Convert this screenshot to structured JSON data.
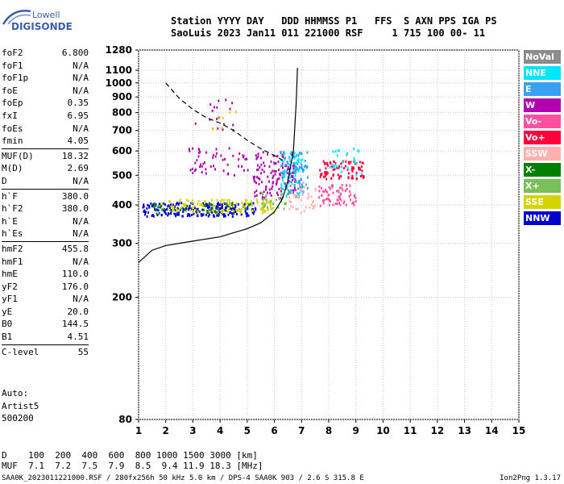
{
  "logo": {
    "line1": "Lowell",
    "line2": "DIGISONDE"
  },
  "header": {
    "line1": "Station YYYY DAY   DDD HHMMSS P1   FFS  S AXN PPS IGA PS",
    "line2": "SaoLuis 2023 Jan11 011 221000 RSF     1 715 100 00- 11"
  },
  "params": {
    "group1": [
      {
        "label": "foF2",
        "value": "6.800"
      },
      {
        "label": "foF1",
        "value": "N/A"
      },
      {
        "label": "foF1p",
        "value": "N/A"
      },
      {
        "label": "foE",
        "value": "N/A"
      },
      {
        "label": "foEp",
        "value": "0.35"
      },
      {
        "label": "fxI",
        "value": "6.95"
      },
      {
        "label": "foEs",
        "value": "N/A"
      },
      {
        "label": "fmin",
        "value": "4.05"
      }
    ],
    "group2": [
      {
        "label": "MUF(D)",
        "value": "18.32"
      },
      {
        "label": "M(D)",
        "value": "2.69"
      },
      {
        "label": "D",
        "value": "N/A"
      }
    ],
    "group3": [
      {
        "label": "h`F",
        "value": "380.0"
      },
      {
        "label": "h`F2",
        "value": "380.0"
      },
      {
        "label": "h`E",
        "value": "N/A"
      },
      {
        "label": "h`Es",
        "value": "N/A"
      }
    ],
    "group4": [
      {
        "label": "hmF2",
        "value": "455.8"
      },
      {
        "label": "hmF1",
        "value": "N/A"
      },
      {
        "label": "hmE",
        "value": "110.0"
      },
      {
        "label": "yF2",
        "value": "176.0"
      },
      {
        "label": "yF1",
        "value": "N/A"
      },
      {
        "label": "yE",
        "value": "20.0"
      },
      {
        "label": "B0",
        "value": "144.5"
      },
      {
        "label": "B1",
        "value": "4.51"
      }
    ],
    "group5": [
      {
        "label": "C-level",
        "value": "55"
      }
    ]
  },
  "auto": {
    "line1": "Auto:",
    "line2": "Artist5",
    "line3": "500200"
  },
  "legend": [
    {
      "label": "NoVal",
      "color": "#8c8c8c"
    },
    {
      "label": "NNE",
      "color": "#00e5ff"
    },
    {
      "label": "E",
      "color": "#3aa0f0"
    },
    {
      "label": "W",
      "color": "#b000b0"
    },
    {
      "label": "Vo-",
      "color": "#ff4fa0"
    },
    {
      "label": "Vo+",
      "color": "#ff003c"
    },
    {
      "label": "SSW",
      "color": "#ffb0b0"
    },
    {
      "label": "X-",
      "color": "#008000"
    },
    {
      "label": "X+",
      "color": "#7bbf5a"
    },
    {
      "label": "SSE",
      "color": "#d4d400"
    },
    {
      "label": "NNW",
      "color": "#0000cc"
    }
  ],
  "chart_data": {
    "type": "scatter",
    "xlabel": "",
    "ylabel": "",
    "xlim": [
      1,
      15
    ],
    "ylim": [
      80,
      1280
    ],
    "x_ticks": [
      1,
      2,
      3,
      4,
      5,
      6,
      7,
      8,
      9,
      10,
      11,
      12,
      13,
      14,
      15
    ],
    "y_ticks": [
      80,
      200,
      300,
      400,
      500,
      600,
      700,
      800,
      900,
      1000,
      1100,
      1280
    ],
    "y_scale": "log",
    "grid": true,
    "clusters": [
      {
        "name": "NNW",
        "x": [
          1.1,
          5.3
        ],
        "y": [
          370,
          410
        ],
        "density": 0.55
      },
      {
        "name": "SSE",
        "x": [
          1.8,
          6.0
        ],
        "y": [
          380,
          420
        ],
        "density": 0.35
      },
      {
        "name": "X-",
        "x": [
          1.5,
          5.5
        ],
        "y": [
          375,
          410
        ],
        "density": 0.12
      },
      {
        "name": "W",
        "x": [
          2.8,
          5.0
        ],
        "y": [
          500,
          620
        ],
        "density": 0.12
      },
      {
        "name": "W",
        "x": [
          3.0,
          4.5
        ],
        "y": [
          700,
          900
        ],
        "density": 0.05
      },
      {
        "name": "W",
        "x": [
          5.2,
          6.8
        ],
        "y": [
          420,
          600
        ],
        "density": 0.25
      },
      {
        "name": "NNE",
        "x": [
          6.2,
          7.0
        ],
        "y": [
          430,
          600
        ],
        "density": 0.35
      },
      {
        "name": "E",
        "x": [
          6.2,
          7.2
        ],
        "y": [
          430,
          600
        ],
        "density": 0.25
      },
      {
        "name": "Vo+",
        "x": [
          7.6,
          9.3
        ],
        "y": [
          490,
          560
        ],
        "density": 0.4
      },
      {
        "name": "Vo-",
        "x": [
          7.6,
          9.0
        ],
        "y": [
          400,
          470
        ],
        "density": 0.35
      },
      {
        "name": "SSW",
        "x": [
          6.5,
          7.5
        ],
        "y": [
          380,
          480
        ],
        "density": 0.2
      },
      {
        "name": "X+",
        "x": [
          5.5,
          6.5
        ],
        "y": [
          390,
          450
        ],
        "density": 0.2
      },
      {
        "name": "NNE",
        "x": [
          8.0,
          9.2
        ],
        "y": [
          490,
          620
        ],
        "density": 0.1
      },
      {
        "name": "SSE",
        "x": [
          3.6,
          4.6
        ],
        "y": [
          700,
          820
        ],
        "density": 0.05
      }
    ],
    "series": [
      {
        "x": [
          1.0,
          1.5,
          2.0,
          3.0,
          4.0,
          5.0,
          5.5,
          6.0,
          6.3,
          6.5,
          6.7,
          6.8,
          6.85
        ],
        "y": [
          260,
          285,
          295,
          305,
          315,
          335,
          350,
          380,
          420,
          480,
          600,
          850,
          1120
        ]
      },
      {
        "x": [
          2.0,
          2.5,
          3.0,
          3.5,
          4.0,
          4.5,
          5.0,
          5.5,
          6.0,
          6.3
        ],
        "y": [
          1000,
          890,
          820,
          770,
          740,
          700,
          650,
          610,
          580,
          560
        ]
      }
    ]
  },
  "bottom": {
    "d_row": "D    100  200  400  600  800 1000 1500 3000 [km]",
    "muf_row": "MUF  7.1  7.2  7.5  7.9  8.5  9.4 11.9 18.3 [MHz]"
  },
  "footer": {
    "left": "SAA0K_2023011221000.RSF / 280fx256h 50 kHz 5.0 km / DPS-4 SAA0K 903 / 2.6 S 315.8 E",
    "right": "Ion2Png 1.3.17"
  }
}
